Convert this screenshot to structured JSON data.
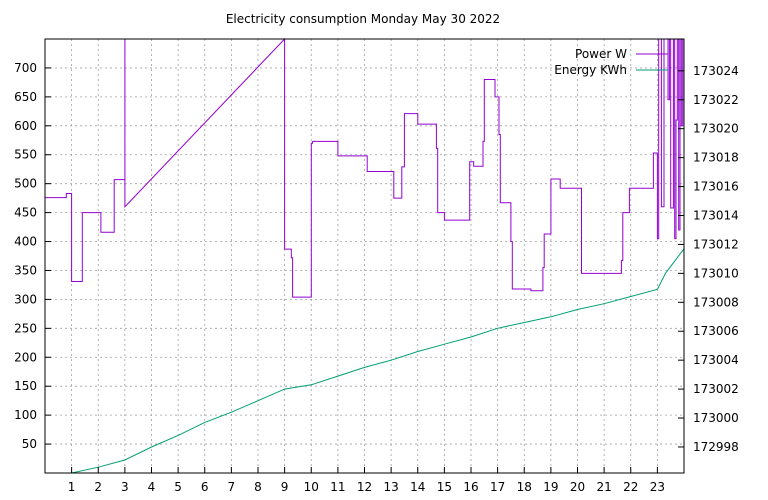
{
  "chart_data": {
    "type": "line",
    "title": "Electricity consumption Monday May 30 2022",
    "xlabel": "",
    "ylabel": "",
    "y2label": "",
    "x_ticks": [
      1,
      2,
      3,
      4,
      5,
      6,
      7,
      8,
      9,
      10,
      11,
      12,
      13,
      14,
      15,
      16,
      17,
      18,
      19,
      20,
      21,
      22,
      23
    ],
    "xlim": [
      0,
      24
    ],
    "ylim": [
      0,
      750
    ],
    "y_ticks": [
      50,
      100,
      150,
      200,
      250,
      300,
      350,
      400,
      450,
      500,
      550,
      600,
      650,
      700
    ],
    "y2lim": [
      172996.2,
      173026.2
    ],
    "y2_ticks": [
      172998,
      173000,
      173002,
      173004,
      173006,
      173008,
      173010,
      173012,
      173014,
      173016,
      173018,
      173020,
      173022,
      173024
    ],
    "grid": true,
    "legend_position": "top-right",
    "series": [
      {
        "name": "Power W",
        "axis": "left",
        "color": "#9400d3",
        "step": true,
        "points": [
          [
            0,
            476
          ],
          [
            0.8,
            476
          ],
          [
            0.8,
            483
          ],
          [
            1.0,
            483
          ],
          [
            1.0,
            331
          ],
          [
            1.4,
            331
          ],
          [
            1.4,
            450
          ],
          [
            2.1,
            450
          ],
          [
            2.1,
            416
          ],
          [
            2.6,
            416
          ],
          [
            2.6,
            507
          ],
          [
            3.0,
            507
          ],
          [
            3.0,
            750
          ],
          [
            3.0,
            460
          ],
          [
            9.0,
            750
          ],
          [
            9.0,
            387
          ],
          [
            9.25,
            387
          ],
          [
            9.25,
            372
          ],
          [
            9.3,
            372
          ],
          [
            9.3,
            304
          ],
          [
            10.0,
            304
          ],
          [
            10.0,
            570
          ],
          [
            10.05,
            570
          ],
          [
            10.05,
            573
          ],
          [
            11.0,
            573
          ],
          [
            11.0,
            548
          ],
          [
            12.1,
            548
          ],
          [
            12.1,
            521
          ],
          [
            13.1,
            521
          ],
          [
            13.1,
            475
          ],
          [
            13.4,
            475
          ],
          [
            13.4,
            529
          ],
          [
            13.5,
            529
          ],
          [
            13.5,
            621
          ],
          [
            14.0,
            621
          ],
          [
            14.0,
            603
          ],
          [
            14.7,
            603
          ],
          [
            14.7,
            561
          ],
          [
            14.75,
            561
          ],
          [
            14.75,
            450
          ],
          [
            15.0,
            450
          ],
          [
            15.0,
            437
          ],
          [
            15.95,
            437
          ],
          [
            15.95,
            538
          ],
          [
            16.1,
            538
          ],
          [
            16.1,
            530
          ],
          [
            16.45,
            530
          ],
          [
            16.45,
            573
          ],
          [
            16.5,
            573
          ],
          [
            16.5,
            680
          ],
          [
            16.9,
            680
          ],
          [
            16.9,
            650
          ],
          [
            17.05,
            650
          ],
          [
            17.05,
            585
          ],
          [
            17.1,
            585
          ],
          [
            17.1,
            467
          ],
          [
            17.5,
            467
          ],
          [
            17.5,
            400
          ],
          [
            17.55,
            400
          ],
          [
            17.55,
            318
          ],
          [
            18.25,
            318
          ],
          [
            18.25,
            315
          ],
          [
            18.7,
            315
          ],
          [
            18.7,
            355
          ],
          [
            18.75,
            355
          ],
          [
            18.75,
            413
          ],
          [
            19.0,
            413
          ],
          [
            19.0,
            508
          ],
          [
            19.35,
            508
          ],
          [
            19.35,
            492
          ],
          [
            20.15,
            492
          ],
          [
            20.15,
            345
          ],
          [
            21.65,
            345
          ],
          [
            21.65,
            367
          ],
          [
            21.7,
            367
          ],
          [
            21.7,
            450
          ],
          [
            21.95,
            450
          ],
          [
            21.95,
            492
          ],
          [
            22.85,
            492
          ],
          [
            22.85,
            553
          ],
          [
            23.0,
            553
          ],
          [
            23.0,
            405
          ],
          [
            23.05,
            405
          ],
          [
            23.05,
            750
          ],
          [
            23.15,
            750
          ],
          [
            23.15,
            460
          ],
          [
            23.25,
            460
          ],
          [
            23.25,
            750
          ],
          [
            23.4,
            750
          ],
          [
            23.4,
            645
          ],
          [
            23.45,
            645
          ],
          [
            23.45,
            750
          ],
          [
            23.5,
            750
          ],
          [
            23.5,
            458
          ],
          [
            23.6,
            458
          ],
          [
            23.6,
            750
          ],
          [
            23.65,
            750
          ],
          [
            23.65,
            405
          ],
          [
            23.7,
            405
          ],
          [
            23.7,
            610
          ],
          [
            23.75,
            610
          ],
          [
            23.75,
            750
          ],
          [
            23.8,
            750
          ],
          [
            23.8,
            420
          ],
          [
            23.85,
            420
          ],
          [
            23.85,
            750
          ],
          [
            23.9,
            750
          ],
          [
            23.9,
            600
          ],
          [
            23.95,
            600
          ],
          [
            23.95,
            750
          ],
          [
            24.0,
            750
          ],
          [
            24.0,
            420
          ]
        ]
      },
      {
        "name": "Energy KWh",
        "axis": "right",
        "color": "#009e73",
        "step": false,
        "points": [
          [
            1.0,
            172996.2
          ],
          [
            2.0,
            172996.6
          ],
          [
            3.0,
            172997.1
          ],
          [
            4.0,
            172998.0
          ],
          [
            5.0,
            172998.8
          ],
          [
            6.0,
            172999.7
          ],
          [
            7.0,
            173000.4
          ],
          [
            8.0,
            173001.2
          ],
          [
            9.0,
            173002.0
          ],
          [
            10.0,
            173002.3
          ],
          [
            11.0,
            173002.9
          ],
          [
            12.0,
            173003.5
          ],
          [
            13.0,
            173004.0
          ],
          [
            14.0,
            173004.6
          ],
          [
            15.0,
            173005.1
          ],
          [
            16.0,
            173005.6
          ],
          [
            17.0,
            173006.2
          ],
          [
            18.0,
            173006.6
          ],
          [
            19.0,
            173007.0
          ],
          [
            20.0,
            173007.5
          ],
          [
            21.0,
            173007.9
          ],
          [
            22.0,
            173008.4
          ],
          [
            23.0,
            173008.9
          ],
          [
            23.3,
            173010.0
          ],
          [
            24.0,
            173011.7
          ]
        ]
      }
    ]
  }
}
